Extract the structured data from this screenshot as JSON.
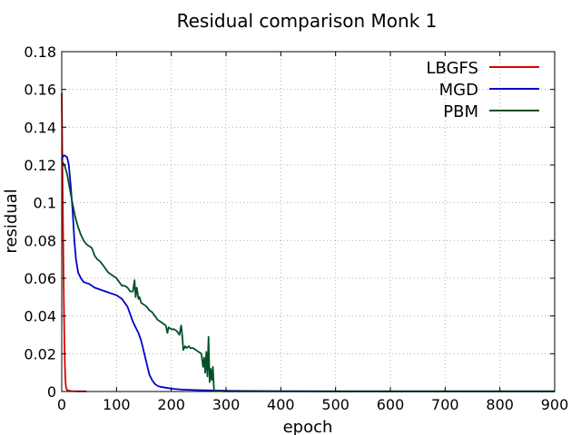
{
  "chart_data": {
    "type": "line",
    "title": "Residual comparison Monk 1",
    "xlabel": "epoch",
    "ylabel": "residual",
    "xlim": [
      0,
      900
    ],
    "ylim": [
      0,
      0.18
    ],
    "xticks": [
      0,
      100,
      200,
      300,
      400,
      500,
      600,
      700,
      800,
      900
    ],
    "yticks": [
      0,
      0.02,
      0.04,
      0.06,
      0.08,
      0.1,
      0.12,
      0.14,
      0.16,
      0.18
    ],
    "xtick_labels": [
      "0",
      "100",
      "200",
      "300",
      "400",
      "500",
      "600",
      "700",
      "800",
      "900"
    ],
    "ytick_labels": [
      "0",
      "0.02",
      "0.04",
      "0.06",
      "0.08",
      "0.1",
      "0.12",
      "0.14",
      "0.16",
      "0.18"
    ],
    "grid": true,
    "legend_position": "top-right",
    "series": [
      {
        "name": "LBGFS",
        "color": "#dd0000",
        "x": [
          0,
          1,
          2,
          3,
          4,
          5,
          6,
          7,
          8,
          10,
          15,
          20,
          30,
          45
        ],
        "y": [
          0.158,
          0.13,
          0.1,
          0.07,
          0.045,
          0.025,
          0.012,
          0.005,
          0.002,
          0.0007,
          0.0003,
          0.0002,
          0.0001,
          0.0001
        ]
      },
      {
        "name": "MGD",
        "color": "#0000cc",
        "x": [
          0,
          3,
          6,
          10,
          13,
          16,
          20,
          23,
          26,
          30,
          35,
          40,
          50,
          60,
          70,
          80,
          90,
          100,
          110,
          120,
          125,
          130,
          135,
          140,
          145,
          150,
          155,
          160,
          165,
          170,
          175,
          180,
          190,
          200,
          220,
          250,
          300,
          400,
          500,
          600,
          700,
          800,
          900
        ],
        "y": [
          0.123,
          0.125,
          0.125,
          0.124,
          0.12,
          0.11,
          0.095,
          0.08,
          0.07,
          0.063,
          0.06,
          0.058,
          0.057,
          0.055,
          0.054,
          0.053,
          0.052,
          0.051,
          0.049,
          0.045,
          0.041,
          0.037,
          0.034,
          0.031,
          0.027,
          0.021,
          0.015,
          0.009,
          0.006,
          0.004,
          0.003,
          0.0025,
          0.002,
          0.0015,
          0.001,
          0.0007,
          0.0004,
          0.0002,
          0.0001,
          0.0001,
          0.0001,
          0.0001,
          0.0001
        ]
      },
      {
        "name": "PBM",
        "color": "#005028",
        "x": [
          0,
          5,
          10,
          15,
          20,
          25,
          30,
          35,
          40,
          45,
          50,
          55,
          60,
          65,
          70,
          75,
          80,
          85,
          90,
          95,
          100,
          105,
          110,
          115,
          120,
          125,
          130,
          133,
          135,
          137,
          140,
          142,
          145,
          150,
          155,
          160,
          165,
          170,
          175,
          180,
          185,
          190,
          193,
          195,
          200,
          205,
          210,
          215,
          218,
          220,
          222,
          225,
          228,
          232,
          235,
          240,
          245,
          250,
          255,
          258,
          260,
          262,
          264,
          266,
          268,
          270,
          272,
          274,
          276,
          278,
          280,
          285,
          290,
          300,
          400,
          500,
          600,
          700,
          800,
          900
        ],
        "y": [
          0.122,
          0.12,
          0.115,
          0.107,
          0.099,
          0.092,
          0.087,
          0.083,
          0.08,
          0.078,
          0.077,
          0.076,
          0.072,
          0.07,
          0.069,
          0.067,
          0.065,
          0.063,
          0.062,
          0.061,
          0.06,
          0.058,
          0.056,
          0.056,
          0.055,
          0.053,
          0.053,
          0.059,
          0.05,
          0.055,
          0.049,
          0.05,
          0.047,
          0.046,
          0.045,
          0.043,
          0.042,
          0.04,
          0.038,
          0.037,
          0.036,
          0.035,
          0.031,
          0.034,
          0.033,
          0.033,
          0.032,
          0.03,
          0.035,
          0.03,
          0.022,
          0.024,
          0.023,
          0.024,
          0.023,
          0.023,
          0.022,
          0.021,
          0.02,
          0.013,
          0.018,
          0.01,
          0.021,
          0.008,
          0.029,
          0.005,
          0.012,
          0.006,
          0.013,
          0.001,
          0.0005,
          0.0003,
          0.0002,
          0.0001,
          0.0001,
          0.0001,
          0.0001,
          0.0001,
          0.0001,
          0.0001
        ]
      }
    ]
  }
}
